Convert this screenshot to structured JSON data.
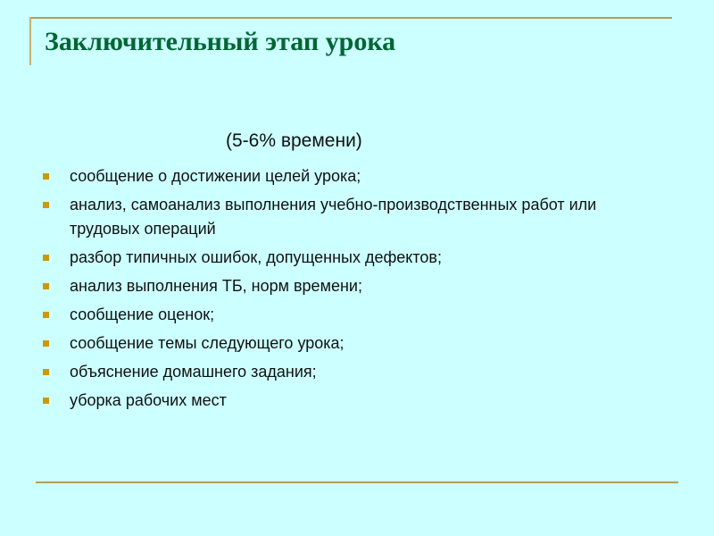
{
  "slide": {
    "title": "Заключительный этап урока",
    "subtitle": "(5-6% времени)",
    "items": [
      "сообщение о достижении целей урока;",
      "анализ, самоанализ выполнения учебно-производственных работ или трудовых операций",
      "разбор типичных ошибок, допущенных дефектов;",
      "анализ выполнения ТБ, норм времени;",
      "сообщение оценок;",
      "сообщение темы следующего урока;",
      "объяснение домашнего задания;",
      "уборка рабочих мест"
    ]
  },
  "colors": {
    "background": "#ccffff",
    "title": "#006633",
    "bullet": "#cc9900",
    "rule": "#b0a060"
  }
}
